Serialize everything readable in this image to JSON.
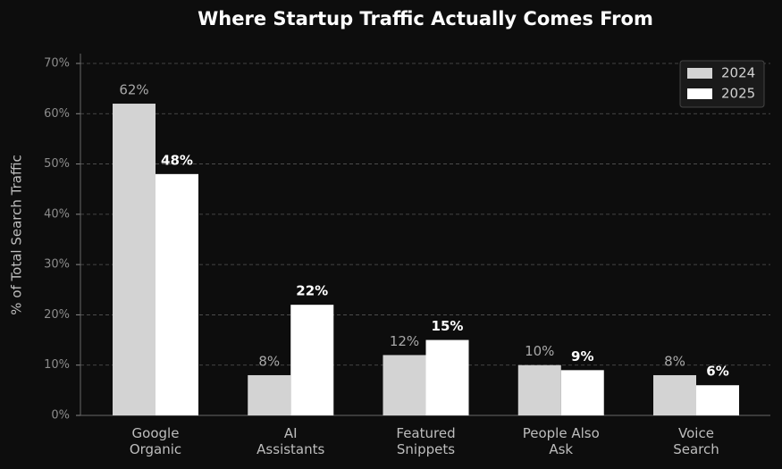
{
  "chart_data": {
    "type": "bar",
    "title": "Where Startup Traffic Actually Comes From",
    "y_label": "% of Total Search Traffic",
    "categories": [
      "Google\nOrganic",
      "AI\nAssistants",
      "Featured\nSnippets",
      "People Also\nAsk",
      "Voice\nSearch"
    ],
    "series": [
      {
        "name": "2024",
        "color": "#d3d3d3",
        "values": [
          62,
          8,
          12,
          10,
          8
        ],
        "value_labels": [
          "62%",
          "8%",
          "12%",
          "10%",
          "8%"
        ]
      },
      {
        "name": "2025",
        "color": "#ffffff",
        "values": [
          48,
          22,
          15,
          9,
          6
        ],
        "value_labels": [
          "48%",
          "22%",
          "15%",
          "9%",
          "6%"
        ]
      }
    ],
    "ylim": [
      0,
      70
    ],
    "yticks": [
      {
        "value": 0,
        "label": "0%"
      },
      {
        "value": 10,
        "label": "10%"
      },
      {
        "value": 20,
        "label": "20%"
      },
      {
        "value": 30,
        "label": "30%"
      },
      {
        "value": 40,
        "label": "40%"
      },
      {
        "value": 50,
        "label": "50%"
      },
      {
        "value": 60,
        "label": "60%"
      },
      {
        "value": 70,
        "label": "70%"
      }
    ],
    "grid": true,
    "legend": "upper right"
  }
}
